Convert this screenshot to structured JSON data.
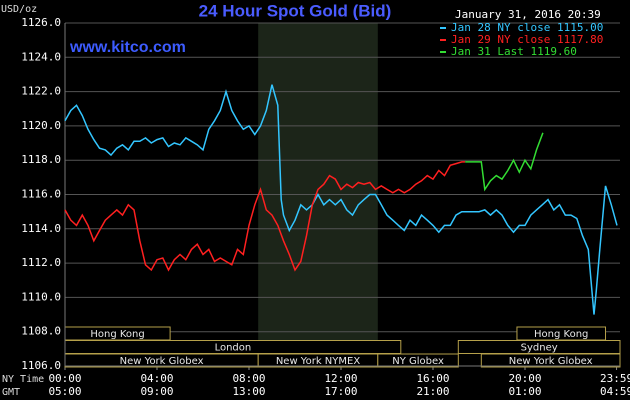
{
  "chart_data": {
    "type": "line",
    "title": "24 Hour Spot Gold (Bid)",
    "subtitle": "January 31, 2016 20:39",
    "watermark": "www.kitco.com",
    "y_label": "USD/oz",
    "background": "#000000",
    "grid": true,
    "legend": "top-right",
    "xlim": [
      0,
      24.13
    ],
    "ylim": [
      1106,
      1126
    ],
    "yticks": [
      {
        "value": 1106,
        "label": "1106.0"
      },
      {
        "value": 1108,
        "label": "1108.0"
      },
      {
        "value": 1110,
        "label": "1110.0"
      },
      {
        "value": 1112,
        "label": "1112.0"
      },
      {
        "value": 1114,
        "label": "1114.0"
      },
      {
        "value": 1116,
        "label": "1116.0"
      },
      {
        "value": 1118,
        "label": "1118.0"
      },
      {
        "value": 1120,
        "label": "1120.0"
      },
      {
        "value": 1122,
        "label": "1122.0"
      },
      {
        "value": 1124,
        "label": "1124.0"
      },
      {
        "value": 1126,
        "label": "1126.0"
      }
    ],
    "time_axes": [
      {
        "name": "NY Time",
        "ticks": [
          {
            "value": 0,
            "label": "00:00"
          },
          {
            "value": 4,
            "label": "04:00"
          },
          {
            "value": 8,
            "label": "08:00"
          },
          {
            "value": 12,
            "label": "12:00"
          },
          {
            "value": 16,
            "label": "16:00"
          },
          {
            "value": 20,
            "label": "20:00"
          },
          {
            "value": 23.98,
            "label": "23:59"
          }
        ]
      },
      {
        "name": "GMT",
        "ticks": [
          {
            "value": 0,
            "label": "05:00"
          },
          {
            "value": 4,
            "label": "09:00"
          },
          {
            "value": 8,
            "label": "13:00"
          },
          {
            "value": 12,
            "label": "17:00"
          },
          {
            "value": 16,
            "label": "21:00"
          },
          {
            "value": 20,
            "label": "01:00"
          },
          {
            "value": 23.98,
            "label": "04:59"
          }
        ]
      }
    ],
    "shade": [
      8.4,
      13.6
    ],
    "sessions": [
      {
        "name": "Hong Kong",
        "row": 0,
        "from": 0,
        "to": 4.57
      },
      {
        "name": "Hong Kong",
        "row": 0,
        "from": 19.65,
        "to": 23.5
      },
      {
        "name": "London",
        "row": 1,
        "from": 0,
        "to": 14.6
      },
      {
        "name": "Sydney",
        "row": 1,
        "from": 17.1,
        "to": 24.13
      },
      {
        "name": "New York Globex",
        "row": 2,
        "from": 0,
        "to": 8.4
      },
      {
        "name": "New York NYMEX",
        "row": 2,
        "from": 8.4,
        "to": 13.6
      },
      {
        "name": "NY Globex",
        "row": 2,
        "from": 13.6,
        "to": 17.1
      },
      {
        "name": "New York Globex",
        "row": 2,
        "from": 18.1,
        "to": 24.13
      }
    ],
    "series": [
      {
        "name": "Jan 28 NY close 1115.00",
        "color": "#33c6ff",
        "x": [
          0,
          0.25,
          0.5,
          0.75,
          1,
          1.25,
          1.5,
          1.75,
          2,
          2.25,
          2.5,
          2.75,
          3,
          3.25,
          3.5,
          3.75,
          4,
          4.25,
          4.5,
          4.75,
          5,
          5.25,
          5.5,
          5.75,
          6,
          6.25,
          6.5,
          6.75,
          7,
          7.25,
          7.5,
          7.75,
          8,
          8.25,
          8.5,
          8.75,
          9,
          9.25,
          9.4,
          9.5,
          9.75,
          10,
          10.25,
          10.5,
          10.75,
          11,
          11.25,
          11.5,
          11.75,
          12,
          12.25,
          12.5,
          12.75,
          13,
          13.25,
          13.5,
          13.75,
          14,
          14.25,
          14.5,
          14.75,
          15,
          15.25,
          15.5,
          15.75,
          16,
          16.25,
          16.5,
          16.75,
          17,
          17.25,
          18,
          18.25,
          18.5,
          18.75,
          19,
          19.25,
          19.5,
          19.75,
          20,
          20.25,
          20.5,
          20.75,
          21,
          21.25,
          21.5,
          21.75,
          22,
          22.25,
          22.5,
          22.75,
          23,
          23.1,
          23.25,
          23.5,
          23.75,
          24
        ],
        "values": [
          1120.3,
          1120.9,
          1121.2,
          1120.6,
          1119.8,
          1119.2,
          1118.7,
          1118.6,
          1118.3,
          1118.7,
          1118.9,
          1118.6,
          1119.1,
          1119.1,
          1119.3,
          1119.0,
          1119.2,
          1119.3,
          1118.8,
          1119.0,
          1118.9,
          1119.3,
          1119.1,
          1118.9,
          1118.6,
          1119.8,
          1120.3,
          1120.9,
          1122.0,
          1120.9,
          1120.3,
          1119.8,
          1120.0,
          1119.5,
          1120.0,
          1120.9,
          1122.4,
          1121.2,
          1115.7,
          1114.8,
          1113.9,
          1114.5,
          1115.4,
          1115.1,
          1115.4,
          1116.0,
          1115.4,
          1115.7,
          1115.4,
          1115.7,
          1115.1,
          1114.8,
          1115.4,
          1115.7,
          1116.0,
          1116.0,
          1115.4,
          1114.8,
          1114.5,
          1114.2,
          1113.9,
          1114.5,
          1114.2,
          1114.8,
          1114.5,
          1114.2,
          1113.8,
          1114.2,
          1114.2,
          1114.8,
          1115.0,
          1115.0,
          1115.1,
          1114.8,
          1115.1,
          1114.8,
          1114.2,
          1113.8,
          1114.2,
          1114.2,
          1114.8,
          1115.1,
          1115.4,
          1115.7,
          1115.1,
          1115.4,
          1114.8,
          1114.8,
          1114.6,
          1113.6,
          1112.8,
          1109.0,
          1110.4,
          1112.8,
          1116.5,
          1115.4,
          1114.2
        ]
      },
      {
        "name": "Jan 29 NY close 1117.80",
        "color": "#ff2020",
        "x": [
          0,
          0.25,
          0.5,
          0.75,
          1,
          1.25,
          1.5,
          1.75,
          2,
          2.25,
          2.5,
          2.75,
          3,
          3.25,
          3.5,
          3.75,
          4,
          4.25,
          4.5,
          4.75,
          5,
          5.25,
          5.5,
          5.75,
          6,
          6.25,
          6.5,
          6.75,
          7,
          7.25,
          7.5,
          7.75,
          8,
          8.25,
          8.5,
          8.75,
          9,
          9.25,
          9.5,
          9.75,
          10,
          10.25,
          10.5,
          10.75,
          11,
          11.25,
          11.5,
          11.75,
          12,
          12.25,
          12.5,
          12.75,
          13,
          13.25,
          13.5,
          13.75,
          14,
          14.25,
          14.5,
          14.75,
          15,
          15.25,
          15.5,
          15.75,
          16,
          16.25,
          16.5,
          16.75,
          17,
          17.25,
          17.4
        ],
        "values": [
          1115.1,
          1114.5,
          1114.2,
          1114.8,
          1114.2,
          1113.3,
          1113.9,
          1114.5,
          1114.8,
          1115.1,
          1114.8,
          1115.4,
          1115.1,
          1113.3,
          1111.9,
          1111.6,
          1112.2,
          1112.3,
          1111.6,
          1112.2,
          1112.5,
          1112.2,
          1112.8,
          1113.1,
          1112.5,
          1112.8,
          1112.1,
          1112.3,
          1112.1,
          1111.9,
          1112.8,
          1112.5,
          1114.2,
          1115.4,
          1116.3,
          1115.1,
          1114.8,
          1114.2,
          1113.3,
          1112.5,
          1111.6,
          1112.1,
          1113.6,
          1115.4,
          1116.3,
          1116.6,
          1117.1,
          1116.9,
          1116.3,
          1116.6,
          1116.4,
          1116.7,
          1116.6,
          1116.7,
          1116.3,
          1116.5,
          1116.3,
          1116.1,
          1116.3,
          1116.1,
          1116.3,
          1116.6,
          1116.8,
          1117.1,
          1116.9,
          1117.4,
          1117.1,
          1117.7,
          1117.8,
          1117.9,
          1117.9
        ]
      },
      {
        "name": "Jan 31 Last 1119.60",
        "color": "#33dd33",
        "x": [
          17.4,
          18.1,
          18.25,
          18.5,
          18.75,
          19,
          19.25,
          19.5,
          19.75,
          20,
          20.25,
          20.5,
          20.78
        ],
        "values": [
          1117.9,
          1117.9,
          1116.3,
          1116.8,
          1117.1,
          1116.9,
          1117.4,
          1118.0,
          1117.3,
          1118.0,
          1117.5,
          1118.6,
          1119.6
        ]
      }
    ]
  }
}
